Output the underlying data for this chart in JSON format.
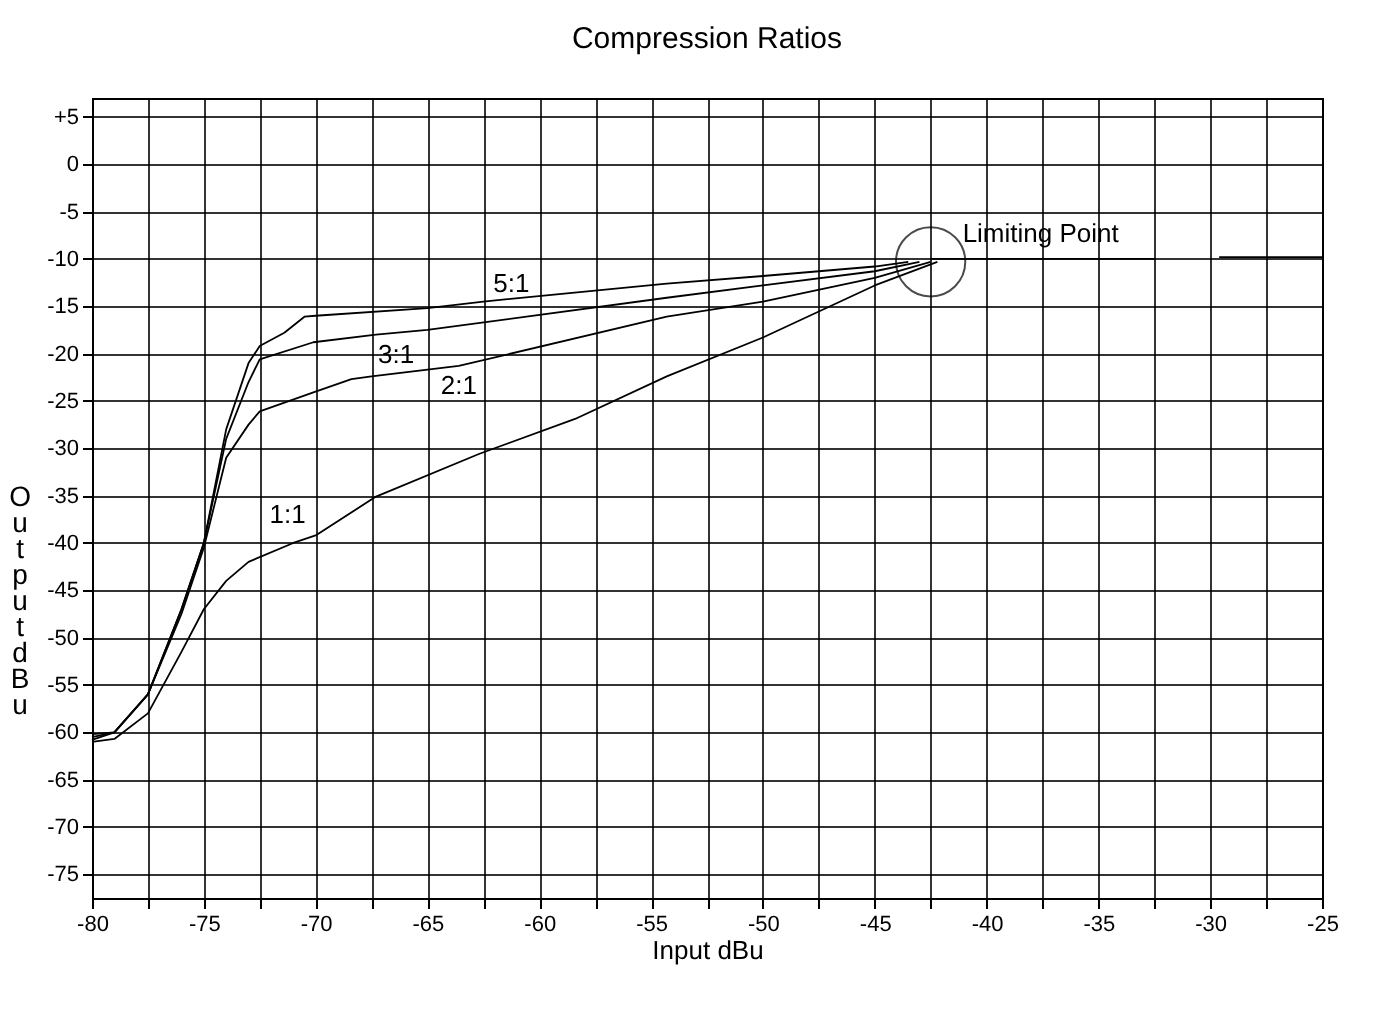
{
  "chart_data": {
    "type": "line",
    "title": "Compression Ratios",
    "xlabel": "Input dBu",
    "ylabel": "Output dBu",
    "xlim": [
      -80,
      -25
    ],
    "ylim": [
      -77.5,
      7
    ],
    "xticks": [
      -80,
      {
        "value": -77.5,
        "label": null
      },
      -75,
      {
        "value": -72.5,
        "label": null
      },
      -70,
      {
        "value": -67.5,
        "label": null
      },
      -65,
      {
        "value": -62.5,
        "label": null
      },
      -60,
      {
        "value": -57.5,
        "label": null
      },
      -55,
      {
        "value": -52.5,
        "label": null
      },
      -50,
      {
        "value": -47.5,
        "label": null
      },
      -45,
      {
        "value": -42.5,
        "label": null
      },
      -40,
      {
        "value": -37.5,
        "label": null
      },
      -35,
      {
        "value": -32.5,
        "label": null
      },
      -30,
      {
        "value": -27.5,
        "label": null
      },
      -25
    ],
    "yticks": [
      {
        "value": 5,
        "label": "+5"
      },
      0,
      -5,
      -10,
      -15,
      -20,
      -25,
      -30,
      -35,
      -40,
      -45,
      -50,
      -55,
      -60,
      -65,
      -70,
      -75
    ],
    "grid": true,
    "legend": false,
    "marker": "none",
    "line_style": "solid",
    "series": [
      {
        "name": "5:1",
        "color": "#000000",
        "x": [
          -80,
          -79,
          -77.5,
          -76,
          -75,
          -74,
          -73,
          -72.5,
          -71.4,
          -70.5,
          -70,
          -65,
          -62.5,
          -54.3,
          -50,
          -45,
          -43.5
        ],
        "values": [
          -60.2,
          -60,
          -56,
          -47,
          -40,
          -28,
          -21,
          -19.2,
          -17.8,
          -16.1,
          -16,
          -15.2,
          -14.5,
          -12.6,
          -11.8,
          -10.8,
          -10.3
        ]
      },
      {
        "name": "3:1",
        "color": "#000000",
        "x": [
          -80,
          -79,
          -77.5,
          -76,
          -75,
          -74,
          -73,
          -72.5,
          -70.1,
          -67.3,
          -65,
          -54.3,
          -50,
          -45,
          -43
        ],
        "values": [
          -60.5,
          -60,
          -56,
          -47,
          -40,
          -29,
          -23,
          -20.6,
          -18.8,
          -18,
          -17.5,
          -14.1,
          -12.8,
          -11.3,
          -10.3
        ]
      },
      {
        "name": "2:1",
        "color": "#000000",
        "x": [
          -80,
          -79,
          -77.5,
          -76,
          -75,
          -74,
          -73,
          -72.5,
          -70.1,
          -68.4,
          -67.5,
          -63.6,
          -54.3,
          -50,
          -45,
          -42.5
        ],
        "values": [
          -60.8,
          -60,
          -56,
          -47.5,
          -40.5,
          -31,
          -27.5,
          -26.1,
          -24.1,
          -22.7,
          -22.4,
          -21.3,
          -16.1,
          -14.5,
          -12,
          -10.3
        ]
      },
      {
        "name": "1:1",
        "color": "#000000",
        "x": [
          -80,
          -79,
          -77.5,
          -76,
          -75,
          -74,
          -73,
          -71,
          -70,
          -67.3,
          -62.7,
          -58.4,
          -54.3,
          -50,
          -45,
          -42.2
        ],
        "values": [
          -61,
          -60.7,
          -58,
          -51.5,
          -47,
          -44,
          -42,
          -40,
          -39.2,
          -35.1,
          -30.6,
          -26.9,
          -22.4,
          -18.3,
          -12.8,
          -10.3
        ]
      },
      {
        "color": "#000000",
        "x": [
          -42.5,
          -32.5,
          -31,
          -29.6,
          -25
        ],
        "values": [
          -10,
          -10,
          null,
          -9.8,
          -9.8
        ]
      }
    ],
    "annotations": [
      {
        "text": "Limiting Point",
        "x": -42.5,
        "y": -10.3
      }
    ]
  }
}
